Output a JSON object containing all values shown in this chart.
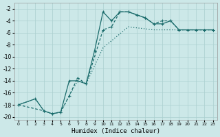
{
  "xlabel": "Humidex (Indice chaleur)",
  "bg_color": "#cce8e8",
  "grid_color": "#aacfcf",
  "line_color": "#1a6b6b",
  "xlim": [
    -0.5,
    23.5
  ],
  "ylim": [
    -20.5,
    -1.0
  ],
  "xticks": [
    0,
    1,
    2,
    3,
    4,
    5,
    6,
    7,
    8,
    9,
    10,
    11,
    12,
    13,
    14,
    15,
    16,
    17,
    18,
    19,
    20,
    21,
    22,
    23
  ],
  "yticks": [
    -2,
    -4,
    -6,
    -8,
    -10,
    -12,
    -14,
    -16,
    -18,
    -20
  ],
  "line1_x": [
    0,
    2,
    3,
    4,
    5,
    6,
    7,
    8,
    9,
    10,
    11,
    12,
    13,
    14,
    15,
    16,
    17,
    18,
    19,
    20,
    21,
    22,
    23
  ],
  "line1_y": [
    -18.0,
    -17.0,
    -19.0,
    -19.5,
    -19.2,
    -14.0,
    -14.0,
    -14.5,
    -9.0,
    -2.5,
    -4.0,
    -2.5,
    -2.5,
    -3.0,
    -3.5,
    -4.5,
    -4.5,
    -4.0,
    -5.5,
    -5.5,
    -5.5,
    -5.5,
    -5.5
  ],
  "line2_x": [
    0,
    3,
    4,
    5,
    6,
    7,
    8,
    10,
    11,
    12,
    13,
    14,
    15,
    16,
    17,
    18,
    19,
    20,
    21,
    22,
    23
  ],
  "line2_y": [
    -18.0,
    -19.0,
    -19.5,
    -19.2,
    -16.5,
    -13.5,
    -14.5,
    -5.5,
    -5.0,
    -2.5,
    -2.5,
    -3.0,
    -3.5,
    -4.5,
    -4.0,
    -4.0,
    -5.5,
    -5.5,
    -5.5,
    -5.5,
    -5.5
  ],
  "line3_x": [
    0,
    2,
    3,
    4,
    5,
    6,
    7,
    8,
    9,
    10,
    13,
    16,
    19,
    22,
    23
  ],
  "line3_y": [
    -18.0,
    -17.0,
    -19.0,
    -19.5,
    -19.2,
    -16.5,
    -14.0,
    -14.5,
    -11.5,
    -8.5,
    -5.0,
    -5.5,
    -5.5,
    -5.5,
    -5.5
  ]
}
